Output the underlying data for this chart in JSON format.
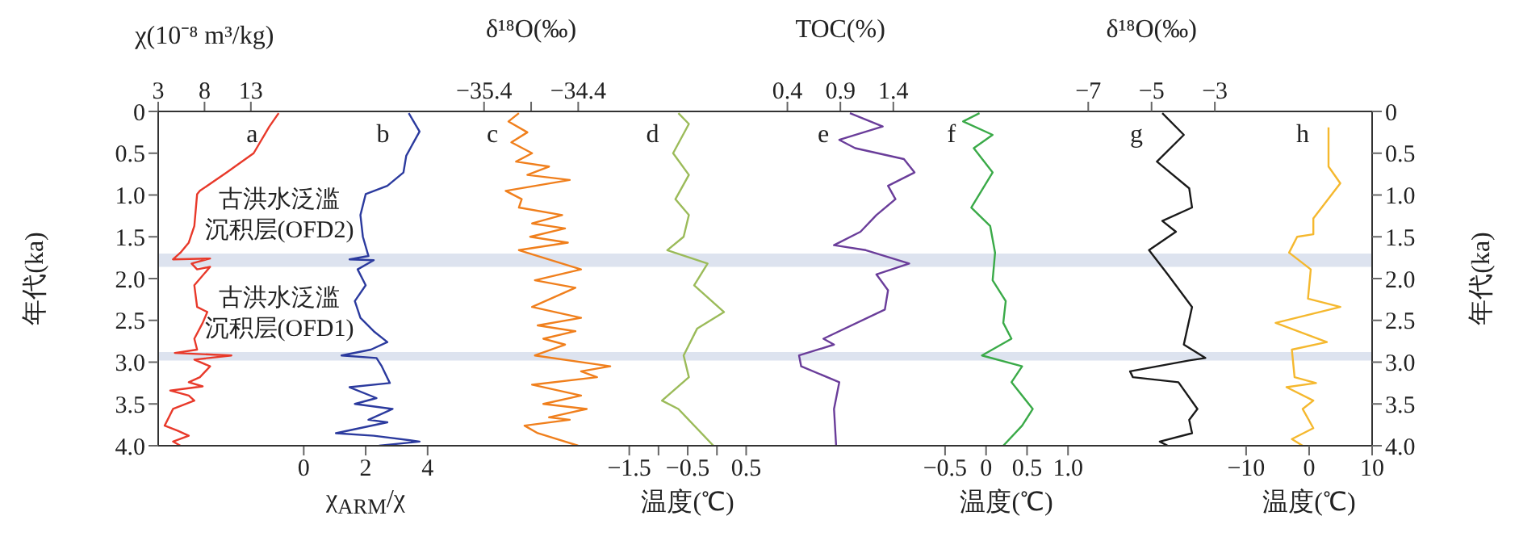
{
  "chart_data": [
    {
      "type": "line",
      "xlabel": "χ(10⁻⁸ m³/kg)",
      "ylabel": "年代(ka)",
      "xlim": [
        3,
        134
      ],
      "xticks": [
        3,
        8,
        13
      ],
      "ylim": [
        4,
        0
      ],
      "yticks": [
        0,
        0.5,
        {
          "value": 1,
          "label": "1.0"
        },
        1.5,
        {
          "value": 2,
          "label": "2.0"
        },
        2.5,
        {
          "value": 3,
          "label": "3.0"
        },
        3.5,
        {
          "value": 4,
          "label": "4.0"
        }
      ],
      "bands": [
        {
          "axis": "y",
          "from": 1.7,
          "to": 1.86,
          "color": "#dde3ef"
        },
        {
          "axis": "y",
          "from": 2.88,
          "to": 2.98,
          "color": "#dde3ef"
        }
      ],
      "annotations": [
        "古洪水泛滥",
        "沉积层(OFD2)",
        "古洪水泛滥",
        "沉积层(OFD1)"
      ],
      "series": [
        {
          "name": "a",
          "color": "#e8392a",
          "x": [
            16.0,
            15.0,
            13.3,
            10.4,
            7.5,
            7.2,
            6.9,
            6.3,
            5.4,
            4.6,
            8.6,
            6.6,
            7.2,
            8.6,
            6.9,
            7.2,
            8.3,
            7.8,
            6.9,
            7.2,
            4.8,
            10.9,
            6.9,
            8.6,
            7.5,
            6.3,
            7.8,
            4.3,
            6.3,
            6.9,
            4.6,
            3.7,
            5.1,
            6.3,
            4.6,
            5.4
          ],
          "values": [
            0.02,
            0.18,
            0.5,
            0.73,
            0.95,
            0.99,
            1.37,
            1.57,
            1.69,
            1.77,
            1.76,
            1.82,
            1.89,
            1.86,
            2.08,
            2.34,
            2.4,
            2.53,
            2.72,
            2.85,
            2.89,
            2.92,
            2.97,
            3.05,
            3.18,
            3.24,
            3.29,
            3.34,
            3.4,
            3.46,
            3.56,
            3.76,
            3.82,
            3.88,
            3.95,
            4.0
          ]
        }
      ]
    },
    {
      "type": "line",
      "xlabel": "χ$_{ARM}$/χ",
      "xlim": [
        -4.7,
        34.5
      ],
      "xticks": [
        0,
        2,
        4
      ],
      "ylim": [
        4,
        0
      ],
      "tick_labels": "x",
      "series": [
        {
          "name": "b",
          "color": "#2b3a9e",
          "x": [
            3.39,
            3.74,
            3.31,
            3.22,
            2.7,
            2.0,
            1.83,
            1.91,
            2.09,
            1.48,
            2.26,
            1.74,
            2.0,
            1.65,
            1.83,
            2.26,
            2.7,
            2.17,
            1.22,
            2.35,
            2.52,
            2.78,
            1.48,
            2.35,
            1.65,
            2.87,
            2.09,
            2.7,
            1.04,
            2.26,
            3.74,
            2.43
          ],
          "values": [
            0.02,
            0.24,
            0.53,
            0.73,
            0.89,
            0.99,
            1.24,
            1.5,
            1.73,
            1.77,
            1.78,
            1.89,
            2.08,
            2.27,
            2.47,
            2.63,
            2.76,
            2.85,
            2.92,
            2.95,
            3.05,
            3.25,
            3.3,
            3.43,
            3.5,
            3.56,
            3.69,
            3.72,
            3.85,
            3.88,
            3.95,
            4.0
          ]
        }
      ]
    },
    {
      "type": "line",
      "xlabel": "δ¹⁸O(‰)",
      "xlim": [
        -38.86,
        -25.97
      ],
      "xticks": [
        -35.4,
        {
          "value": -34.9,
          "label": null
        },
        -34.4
      ],
      "ylim": [
        4,
        0
      ],
      "tick_labels": "x",
      "series": [
        {
          "name": "c",
          "color": "#f07f1c",
          "x": [
            -35.03,
            -35.14,
            -34.94,
            -35.11,
            -34.89,
            -35.06,
            -34.71,
            -34.94,
            -34.49,
            -35.17,
            -35.0,
            -35.03,
            -34.57,
            -34.89,
            -34.54,
            -34.91,
            -34.51,
            -35.03,
            -34.37,
            -34.86,
            -34.43,
            -34.89,
            -34.37,
            -34.83,
            -34.43,
            -34.77,
            -34.54,
            -34.86,
            -34.06,
            -34.37,
            -34.2,
            -34.89,
            -34.37,
            -34.77,
            -34.31,
            -34.71,
            -34.49,
            -34.97,
            -34.83,
            -34.4
          ],
          "values": [
            0.02,
            0.12,
            0.25,
            0.37,
            0.5,
            0.6,
            0.66,
            0.76,
            0.82,
            0.95,
            1.05,
            1.15,
            1.24,
            1.34,
            1.4,
            1.5,
            1.57,
            1.66,
            1.89,
            2.02,
            2.11,
            2.34,
            2.47,
            2.56,
            2.63,
            2.72,
            2.79,
            2.92,
            3.05,
            3.11,
            3.18,
            3.27,
            3.4,
            3.5,
            3.56,
            3.66,
            3.69,
            3.76,
            3.85,
            4.0
          ]
        }
      ]
    },
    {
      "type": "line",
      "xlabel": "温度(℃)",
      "xlim": [
        -9.56,
        11.21
      ],
      "xticks": [
        -1.5,
        {
          "value": -1,
          "label": null
        },
        -0.5,
        {
          "value": 0,
          "label": null
        },
        0.5
      ],
      "ylim": [
        4,
        0
      ],
      "tick_labels": "x",
      "series": [
        {
          "name": "d",
          "color": "#9bbb59",
          "x": [
            -0.66,
            -0.48,
            -0.75,
            -0.48,
            -0.71,
            -0.48,
            -0.57,
            -0.85,
            -0.16,
            -0.39,
            0.12,
            -0.34,
            -0.57,
            -0.48,
            -0.94,
            -0.66,
            -0.06
          ],
          "values": [
            0.02,
            0.15,
            0.5,
            0.76,
            1.05,
            1.24,
            1.5,
            1.66,
            1.82,
            2.08,
            2.4,
            2.6,
            2.92,
            3.18,
            3.46,
            3.56,
            4.0
          ]
        }
      ]
    },
    {
      "type": "line",
      "xlabel": "TOC(%)",
      "xlim": [
        -5.54,
        5.92
      ],
      "xticks": [
        0.4,
        0.9,
        1.4
      ],
      "ylim": [
        4,
        0
      ],
      "tick_labels": "x",
      "series": [
        {
          "name": "e",
          "color": "#6a3d9a",
          "x": [
            0.99,
            1.3,
            0.89,
            1.04,
            1.5,
            1.6,
            1.35,
            1.42,
            1.24,
            1.09,
            0.84,
            1.14,
            1.55,
            1.24,
            1.35,
            1.32,
            0.74,
            0.84,
            0.51,
            0.53,
            0.89,
            0.84,
            0.86
          ],
          "values": [
            0.02,
            0.18,
            0.34,
            0.44,
            0.57,
            0.73,
            0.89,
            1.05,
            1.24,
            1.44,
            1.6,
            1.66,
            1.82,
            1.95,
            2.14,
            2.37,
            2.72,
            2.79,
            2.92,
            3.05,
            3.24,
            3.56,
            4.0
          ]
        }
      ]
    },
    {
      "type": "line",
      "xlabel": "温度(℃)",
      "xlim": [
        -10.1,
        4.71
      ],
      "xticks": [
        -0.5,
        0,
        0.5,
        {
          "value": 1,
          "label": "1.0"
        }
      ],
      "ylim": [
        4,
        0
      ],
      "tick_labels": "x",
      "series": [
        {
          "name": "f",
          "color": "#3aaa48",
          "x": [
            -0.08,
            -0.28,
            0.08,
            -0.15,
            0.08,
            -0.18,
            0.05,
            0.11,
            0.08,
            0.24,
            0.21,
            0.31,
            -0.05,
            0.44,
            0.31,
            0.57,
            0.44,
            0.21
          ],
          "values": [
            0.02,
            0.12,
            0.28,
            0.44,
            0.73,
            1.15,
            1.37,
            1.69,
            2.02,
            2.27,
            2.53,
            2.72,
            2.92,
            3.05,
            3.24,
            3.56,
            3.76,
            4.0
          ]
        }
      ]
    },
    {
      "type": "line",
      "xlabel": "δ¹⁸O(‰)",
      "xlim": [
        -36.39,
        1.97
      ],
      "xticks": [
        -7,
        -5,
        -3
      ],
      "ylim": [
        4,
        0
      ],
      "tick_labels": "x",
      "series": [
        {
          "name": "g",
          "color": "#1a1a1a",
          "x": [
            -4.66,
            -3.98,
            -4.83,
            -3.81,
            -3.72,
            -4.66,
            -4.23,
            -5.08,
            -4.49,
            -3.72,
            -3.98,
            -3.3,
            -3.81,
            -5.68,
            -5.59,
            -4.15,
            -3.55,
            -3.81,
            -3.72,
            -4.74,
            -4.49
          ],
          "values": [
            0.02,
            0.28,
            0.6,
            0.92,
            1.15,
            1.31,
            1.44,
            1.66,
            1.95,
            2.34,
            2.79,
            2.95,
            2.98,
            3.11,
            3.18,
            3.24,
            3.56,
            3.69,
            3.85,
            3.95,
            4.0
          ]
        }
      ]
    },
    {
      "type": "line",
      "xlabel": "温度(℃)",
      "ylabel": "年代(ka)",
      "xlim": [
        -182.7,
        10
      ],
      "xticks": [
        -10,
        0,
        10
      ],
      "ylim": [
        4,
        0
      ],
      "yticks": [
        0,
        0.5,
        {
          "value": 1,
          "label": "1.0"
        },
        1.5,
        {
          "value": 2,
          "label": "2.0"
        },
        2.5,
        {
          "value": 3,
          "label": "3.0"
        },
        3.5,
        {
          "value": 4,
          "label": "4.0"
        }
      ],
      "series": [
        {
          "name": "h",
          "color": "#f5b82e",
          "x": [
            3.08,
            3.08,
            4.95,
            0.67,
            0.67,
            -1.9,
            -3.18,
            0.26,
            -0.18,
            4.95,
            -5.31,
            2.82,
            -2.74,
            -2.31,
            1.1,
            -3.59,
            0.67,
            -1.03,
            0.67,
            -2.74,
            -1.03
          ],
          "values": [
            0.19,
            0.66,
            0.86,
            1.28,
            1.47,
            1.5,
            1.69,
            1.89,
            2.24,
            2.34,
            2.53,
            2.76,
            2.85,
            3.18,
            3.25,
            3.3,
            3.46,
            3.56,
            3.79,
            3.92,
            4.0
          ]
        }
      ]
    }
  ]
}
